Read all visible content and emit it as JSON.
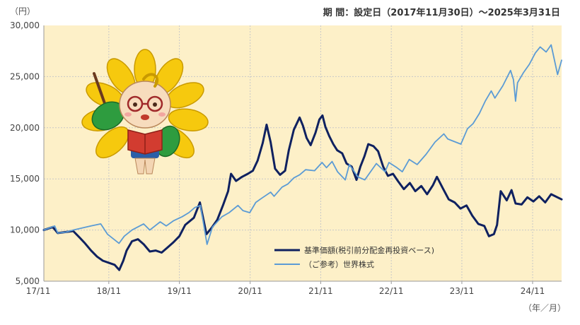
{
  "chart_data": {
    "type": "line",
    "period": "期 間：設定日（2017年11月30日）～2025年3月31日",
    "y_unit": "（円）",
    "x_unit": "（年／月）",
    "ylim": [
      5000,
      30000
    ],
    "y_ticks": [
      5000,
      10000,
      15000,
      20000,
      25000,
      30000
    ],
    "y_tick_labels": [
      "5,000",
      "10,000",
      "15,000",
      "20,000",
      "25,000",
      "30,000"
    ],
    "xlim": [
      "2017-11-30",
      "2025-03-31"
    ],
    "x_ticks": [
      "2017-11",
      "2018-11",
      "2019-11",
      "2020-11",
      "2021-11",
      "2022-11",
      "2023-11",
      "2024-11"
    ],
    "x_tick_labels": [
      "17/11",
      "18/11",
      "19/11",
      "20/11",
      "21/11",
      "22/11",
      "23/11",
      "24/11"
    ],
    "grid": true,
    "legend_position": "bottom-center",
    "colors": {
      "plot_background": "#fdf0c8",
      "series_fund": "#0f2160",
      "series_world": "#5b9bd5",
      "grid": "#c8c8c8"
    },
    "series": [
      {
        "name": "基準価額(税引前分配金再投資ベース)",
        "color": "#0f2160",
        "points": [
          [
            "2017-11-30",
            10000
          ],
          [
            "2018-01-15",
            10300
          ],
          [
            "2018-02-10",
            9700
          ],
          [
            "2018-03-20",
            9800
          ],
          [
            "2018-05-01",
            9900
          ],
          [
            "2018-06-01",
            9300
          ],
          [
            "2018-07-01",
            8700
          ],
          [
            "2018-08-01",
            8000
          ],
          [
            "2018-09-01",
            7400
          ],
          [
            "2018-10-01",
            7000
          ],
          [
            "2018-11-01",
            6800
          ],
          [
            "2018-12-01",
            6600
          ],
          [
            "2018-12-25",
            6100
          ],
          [
            "2019-01-15",
            7000
          ],
          [
            "2019-02-01",
            8000
          ],
          [
            "2019-03-01",
            8900
          ],
          [
            "2019-04-01",
            9100
          ],
          [
            "2019-05-01",
            8600
          ],
          [
            "2019-06-01",
            7900
          ],
          [
            "2019-07-01",
            8000
          ],
          [
            "2019-08-01",
            7800
          ],
          [
            "2019-09-01",
            8300
          ],
          [
            "2019-10-01",
            8800
          ],
          [
            "2019-11-01",
            9400
          ],
          [
            "2019-12-01",
            10500
          ],
          [
            "2020-01-15",
            11200
          ],
          [
            "2020-02-15",
            12700
          ],
          [
            "2020-03-20",
            9600
          ],
          [
            "2020-04-15",
            10200
          ],
          [
            "2020-05-15",
            11000
          ],
          [
            "2020-06-15",
            12500
          ],
          [
            "2020-07-10",
            13800
          ],
          [
            "2020-07-25",
            15500
          ],
          [
            "2020-08-20",
            14800
          ],
          [
            "2020-09-20",
            15200
          ],
          [
            "2020-10-20",
            15500
          ],
          [
            "2020-11-15",
            15800
          ],
          [
            "2020-12-10",
            16800
          ],
          [
            "2021-01-05",
            18500
          ],
          [
            "2021-01-25",
            20300
          ],
          [
            "2021-02-15",
            18600
          ],
          [
            "2021-03-10",
            16000
          ],
          [
            "2021-04-05",
            15400
          ],
          [
            "2021-05-01",
            15800
          ],
          [
            "2021-05-20",
            17800
          ],
          [
            "2021-06-15",
            19800
          ],
          [
            "2021-07-15",
            21000
          ],
          [
            "2021-08-01",
            20200
          ],
          [
            "2021-08-20",
            19000
          ],
          [
            "2021-09-10",
            18300
          ],
          [
            "2021-10-05",
            19500
          ],
          [
            "2021-10-25",
            20800
          ],
          [
            "2021-11-10",
            21200
          ],
          [
            "2021-11-25",
            20100
          ],
          [
            "2021-12-15",
            19200
          ],
          [
            "2022-01-05",
            18400
          ],
          [
            "2022-01-25",
            17800
          ],
          [
            "2022-02-20",
            17500
          ],
          [
            "2022-03-15",
            16500
          ],
          [
            "2022-04-10",
            16200
          ],
          [
            "2022-05-05",
            14900
          ],
          [
            "2022-05-25",
            16200
          ],
          [
            "2022-06-15",
            17200
          ],
          [
            "2022-07-05",
            18400
          ],
          [
            "2022-08-01",
            18200
          ],
          [
            "2022-08-25",
            17700
          ],
          [
            "2022-09-20",
            16200
          ],
          [
            "2022-10-15",
            15300
          ],
          [
            "2022-11-10",
            15500
          ],
          [
            "2022-12-05",
            14800
          ],
          [
            "2023-01-05",
            14000
          ],
          [
            "2023-02-05",
            14600
          ],
          [
            "2023-03-05",
            13800
          ],
          [
            "2023-04-05",
            14300
          ],
          [
            "2023-05-05",
            13500
          ],
          [
            "2023-06-05",
            14400
          ],
          [
            "2023-06-25",
            15200
          ],
          [
            "2023-07-25",
            14100
          ],
          [
            "2023-08-25",
            13000
          ],
          [
            "2023-09-25",
            12700
          ],
          [
            "2023-10-25",
            12100
          ],
          [
            "2023-11-25",
            12400
          ],
          [
            "2023-12-25",
            11400
          ],
          [
            "2024-01-25",
            10600
          ],
          [
            "2024-02-25",
            10400
          ],
          [
            "2024-03-20",
            9400
          ],
          [
            "2024-04-15",
            9600
          ],
          [
            "2024-05-01",
            10500
          ],
          [
            "2024-05-20",
            13800
          ],
          [
            "2024-06-20",
            12900
          ],
          [
            "2024-07-15",
            13900
          ],
          [
            "2024-08-05",
            12600
          ],
          [
            "2024-09-05",
            12500
          ],
          [
            "2024-10-05",
            13200
          ],
          [
            "2024-11-05",
            12800
          ],
          [
            "2024-12-05",
            13300
          ],
          [
            "2025-01-05",
            12700
          ],
          [
            "2025-02-05",
            13500
          ],
          [
            "2025-03-31",
            13000
          ]
        ]
      },
      {
        "name": "（ご参考）世界株式",
        "color": "#5b9bd5",
        "points": [
          [
            "2017-11-30",
            10000
          ],
          [
            "2018-01-25",
            10400
          ],
          [
            "2018-02-10",
            9700
          ],
          [
            "2018-03-25",
            9800
          ],
          [
            "2018-05-01",
            10000
          ],
          [
            "2018-06-15",
            10200
          ],
          [
            "2018-08-01",
            10400
          ],
          [
            "2018-09-20",
            10600
          ],
          [
            "2018-10-25",
            9600
          ],
          [
            "2018-12-24",
            8700
          ],
          [
            "2019-01-20",
            9400
          ],
          [
            "2019-03-01",
            10000
          ],
          [
            "2019-04-30",
            10600
          ],
          [
            "2019-06-01",
            10000
          ],
          [
            "2019-07-25",
            10800
          ],
          [
            "2019-08-25",
            10400
          ],
          [
            "2019-10-01",
            10900
          ],
          [
            "2019-11-15",
            11300
          ],
          [
            "2019-12-20",
            11700
          ],
          [
            "2020-01-20",
            12200
          ],
          [
            "2020-02-18",
            12400
          ],
          [
            "2020-03-23",
            8600
          ],
          [
            "2020-04-20",
            10300
          ],
          [
            "2020-06-08",
            11300
          ],
          [
            "2020-07-15",
            11700
          ],
          [
            "2020-08-30",
            12400
          ],
          [
            "2020-09-25",
            11900
          ],
          [
            "2020-10-30",
            11700
          ],
          [
            "2020-11-30",
            12700
          ],
          [
            "2020-12-30",
            13100
          ],
          [
            "2021-02-15",
            13700
          ],
          [
            "2021-03-05",
            13300
          ],
          [
            "2021-04-15",
            14200
          ],
          [
            "2021-05-15",
            14500
          ],
          [
            "2021-06-15",
            15100
          ],
          [
            "2021-07-15",
            15400
          ],
          [
            "2021-08-15",
            15900
          ],
          [
            "2021-09-30",
            15800
          ],
          [
            "2021-11-08",
            16600
          ],
          [
            "2021-12-01",
            16100
          ],
          [
            "2021-12-30",
            16700
          ],
          [
            "2022-01-27",
            15700
          ],
          [
            "2022-03-08",
            14900
          ],
          [
            "2022-03-29",
            16400
          ],
          [
            "2022-05-12",
            15200
          ],
          [
            "2022-06-17",
            14900
          ],
          [
            "2022-08-16",
            16500
          ],
          [
            "2022-09-30",
            15700
          ],
          [
            "2022-10-20",
            16600
          ],
          [
            "2022-11-30",
            16100
          ],
          [
            "2022-12-28",
            15700
          ],
          [
            "2023-02-02",
            16900
          ],
          [
            "2023-03-15",
            16400
          ],
          [
            "2023-04-30",
            17400
          ],
          [
            "2023-06-15",
            18600
          ],
          [
            "2023-07-31",
            19400
          ],
          [
            "2023-08-20",
            18900
          ],
          [
            "2023-10-27",
            18400
          ],
          [
            "2023-11-30",
            19900
          ],
          [
            "2023-12-29",
            20400
          ],
          [
            "2024-01-31",
            21400
          ],
          [
            "2024-03-01",
            22600
          ],
          [
            "2024-04-01",
            23600
          ],
          [
            "2024-04-20",
            22900
          ],
          [
            "2024-05-31",
            24100
          ],
          [
            "2024-07-10",
            25600
          ],
          [
            "2024-07-25",
            24700
          ],
          [
            "2024-08-05",
            22600
          ],
          [
            "2024-08-15",
            24400
          ],
          [
            "2024-09-15",
            25400
          ],
          [
            "2024-10-15",
            26200
          ],
          [
            "2024-11-15",
            27300
          ],
          [
            "2024-12-10",
            27900
          ],
          [
            "2025-01-10",
            27400
          ],
          [
            "2025-02-05",
            28100
          ],
          [
            "2025-03-10",
            25200
          ],
          [
            "2025-03-31",
            26600
          ]
        ]
      }
    ]
  }
}
